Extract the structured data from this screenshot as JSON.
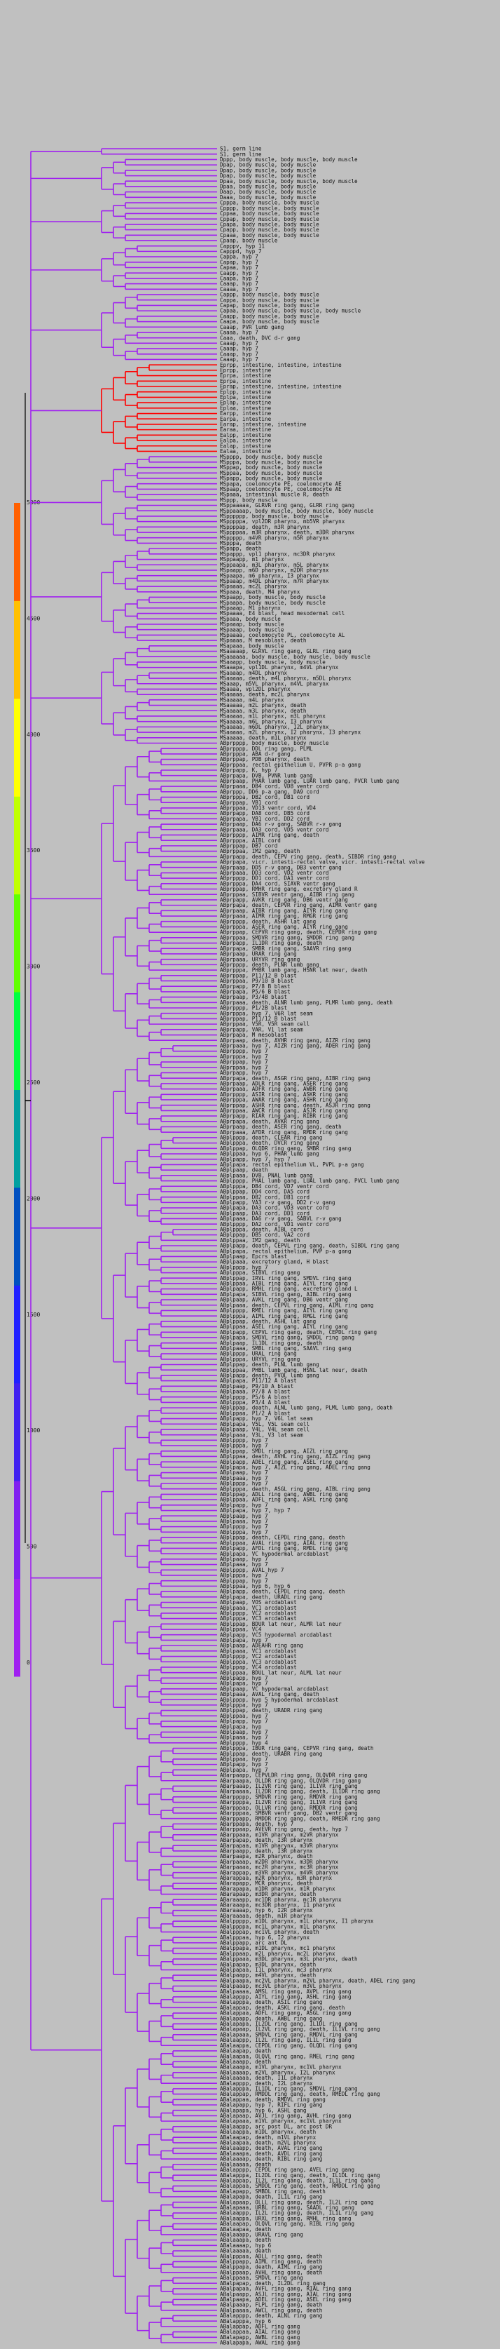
{
  "tree": {
    "leaf_labels": [
      "S1, germ line",
      "S1, germ line",
      "Dppp, body muscle, body muscle, body muscle",
      "Dpap, body muscle, body muscle",
      "Dpap, body muscle, body muscle",
      "Dpap, body muscle, body muscle",
      "Dpaa, body muscle, body muscle, body muscle",
      "Dpaa, body muscle, body muscle",
      "Daap, body muscle, body muscle",
      "Daaa, body muscle, body muscle",
      "Cpppa, body muscle, body muscle",
      "Cpppp, body muscle, body muscle",
      "Cppaa, body muscle, body muscle",
      "Cppap, body muscle, body muscle",
      "Cpapa, body muscle, body muscle",
      "Cpapp, body muscle, body muscle",
      "Cpaaa, body muscle, body muscle",
      "Cpaap, body muscle",
      "Capppv, hyp 11",
      "Capppd, hyp 7",
      "Cappa, hyp 7",
      "Capap, hyp 7",
      "Capaa, hyp 7",
      "Caapp, hyp 7",
      "Caapa, hyp 7",
      "Caaap, hyp 7",
      "Caaaa, hyp 7",
      "Cappp, body muscle, body muscle",
      "Cappa, body muscle, body muscle",
      "Capap, body muscle, body muscle",
      "Capaa, body muscle, body muscle, body muscle",
      "Caapp, body muscle, body muscle",
      "Caapa, body muscle, body muscle",
      "Caaap, PVR lumb gang",
      "Caaaa, hyp 7",
      "Caaa, death, DVC d-r gang",
      "Caaap, hyp 7",
      "Caaap, hyp 7",
      "Caaap, hyp 7",
      "Caaap, hyp 7",
      "Eprpp, intestine, intestine, intestine",
      "Eprpp, intestine",
      "Eprpa, intestine",
      "Eprpa, intestine",
      "Eprap, intestine, intestine, intestine",
      "Eplpp, intestine",
      "Eplpa, intestine",
      "Eplap, intestine",
      "Eplaa, intestine",
      "Earpp, intestine",
      "Earpa, intestine",
      "Earap, intestine, intestine",
      "Earaa, intestine",
      "Ealpp, intestine",
      "Ealpa, intestine",
      "Ealap, intestine",
      "Ealaa, intestine",
      "MSpppp, body muscle, body muscle",
      "MSpppa, body muscle, body muscle",
      "MSppap, body muscle, body muscle",
      "MSppaa, body muscle, body muscle",
      "MSpapp, body muscle, body muscle",
      "MSpapa, coelomocyte PE, coelomocyte AE",
      "MSpaap, coelomocyte PE, coelomocyte AE",
      "MSpaaa, intestinal muscle R, death",
      "MSppp, body muscle",
      "MSppaaaaa, GLRVR ring gang, GLRR ring gang",
      "MSppaaaap, body muscle, body muscle, body muscle",
      "MSpppppp, body muscle, body muscle",
      "MSpppppa, vpl2DR pharynx, mb5VR pharynx",
      "MSppppap, death, m3R pharynx",
      "MSppppaa, m3R pharynx, death, m3DR pharynx",
      "MSppppp, m4VR pharynx, m5R pharynx",
      "MSpppa, death",
      "MSpapp, death",
      "MSpappp, vpl1 pharynx, mc3DR pharynx",
      "MSppaapp, m1 pharynx",
      "MSppaapa, m3L pharynx, m5L pharynx",
      "MSpaapp, m6D pharynx, m2DR pharynx",
      "MSpaapa, m6 pharynx, I3 pharynx",
      "MSpaaap, m4DL pharynx, m7R pharynx",
      "MSpaaaa, mc2L pharynx",
      "MSpaaa, death, M4 pharynx",
      "MSpaapp, body muscle, body muscle",
      "MSpaapa, body muscle, body muscle",
      "MSpaaap, M1 pharynx",
      "MSpaaaa, E4 blast, head mesodermal cell",
      "MSpaaa, body muscle",
      "MSpaaap, body muscle",
      "MSpaaap, body muscle",
      "MSpaaaa, coelomocyte PL, coelomocyte AL",
      "MSpaaaa, M mesoblast, death",
      "MSapaaa, body muscle",
      "MSaaaaap, GLRVL ring gang, GLRL ring gang",
      "MSaaaaaa, body muscle, body muscle, body muscle",
      "MSaaapp, body muscle, body muscle",
      "MSaaapa, vpl1DL pharynx, m4VL pharynx",
      "MSaaaap, m4DL pharynx",
      "MSaaaaa, death, m4L pharynx, m5DL pharynx",
      "MSaaap, m5VL pharynx, m4VL pharynx",
      "MSaaaa, vpl2DL pharynx",
      "MSaaaaa, death, mc2L pharynx",
      "MSaaaaa, m4L pharynx",
      "MSaaaaa, m2L pharynx, death",
      "MSaaaaa, m3L pharynx, death",
      "MSaaaaa, m1L pharynx, m3L pharynx",
      "MSaaaaa, m6L pharynx, I3 pharynx",
      "MSaaaaa, m6DL pharynx, I2L pharynx",
      "MSaaaaa, m2L pharynx, I2 pharynx, I3 pharynx",
      "MSaaaaa, death, m1L pharynx",
      "ABprpppp, body muscle, body muscle",
      "ABprpppp, DDL ring gang, PLML",
      "ABprpppa, ABA d-r gang",
      "ABprppap, PDB pharynx, death",
      "ABprppaa, rectal epithelium U, PVPR p-a gang",
      "ABprpapp, K, hyp 7",
      "ABprpapa, DVB, PVNR lumb gang",
      "ABprpaap, PHAR lumb gang, LUAR lumb gang, PVCR lumb gang",
      "ABprpaaa, DB4 cord, VD8 ventr cord",
      "ABprppp, DD6 p-a gang, DA9 cord",
      "ABprpppa, DB2 cord, DB1 cord",
      "ABprppap, VB1 cord",
      "ABprppaa, VD13 ventr cord, VD4",
      "ABprpapp, DA8 cord, DB5 cord",
      "ABprpapa, VB1 cord, DD2 cord",
      "ABprpaap, DA6 r-v gang, SABVR r-v gang",
      "ABprpaaa, DA3 cord, VD5 ventr cord",
      "ABprpppp, AIMR ring gang, death",
      "ABprpppa, AIBL cord",
      "ABprppap, DB7 cord",
      "ABprppaa, IM2 gang, death",
      "ABprpapp, death, CEPV ring gang, death, SIBDR ring gang",
      "ABprpapa, vicr. intesti-rectal valve, vicr. intesti-rectal valve",
      "ABprpaap, DD5 r-v gang, DB3 ventr gang",
      "ABprpaaa, DD3 cord, VD2 ventr cord",
      "ABprpppp, DD1 cord, DA1 ventr cord",
      "ABprpppa, DA4 cord, SIAVR ventr gang",
      "ABprppap, RMHR ring gang, excretory gland R",
      "ABprppaa, SIBVR ventr gang, AIBR ring gang",
      "ABprpapp, AVKR ring gang, DB6 ventr gang",
      "ABprpapa, death, CEPVR ring gang, AIMR ventr gang",
      "ABprpaap, AIBR ring gang, AIYR ring gang",
      "ABprpaaa, AIMR ring gang, RMGR ring gang",
      "ABprpppp, death, ASHR lat gang",
      "ABprpppa, ASER ring gang, AIYR ring gang",
      "ABprppap, CEPVR ring gang, death, CEPDR ring gang",
      "ABprppaa, SMDVR ring gang, SMDDR ring gang",
      "ABprpapp, IL1DR ring gang, death",
      "ABprpapa, SMBR ring gang, SAAVR ring gang",
      "ABprpaap, URAR ring gang",
      "ABprpaaa, URYVR ring gang",
      "ABprpppp, death, PLNR lumb gang",
      "ABprpppa, PHBR lumb gang, HSNR lat neur, death",
      "ABprppap, P11/12 B blast",
      "ABprppaa, P9/10 B blast",
      "ABprpapp, P7/8 B blast",
      "ABprpapa, P5/6 B blast",
      "ABprpaap, P3/4B blast",
      "ABprpaaa, death, ALNR lumb gang, PLMR lumb gang, death",
      "ABprpppp, P1/2B blast",
      "ABprpppa, hyp 7, V6R lat seam",
      "ABprppap, P11/12 B blast",
      "ABprppaa, V5R, V5R seam cell",
      "ABprpapp, VAR, V1 lat seam",
      "ABprpapa, M mesoblast",
      "ABprpaap, death, AVHR ring gang, AIZR ring gang",
      "ABprpaaa, hyp 7, AIZR ring gang, ADER ring gang",
      "ABprpppp, hyp 7",
      "ABprpppa, hyp 7",
      "ABprppap, hyp 7",
      "ABprppaa, hyp 7",
      "ABprpapp, hyp 7",
      "ABprpapa, death, ASGR ring gang, AIBR ring gang",
      "ABprpaap, ADLR ring gang, ASER ring gang",
      "ABprpaaa, ADFR ring gang, AWBR ring gang",
      "ABprpppp, ASIR ring gang, ASKR ring gang",
      "ABprpppa, AWAR ring gang, ASHR ring gang",
      "ABprppap, ASHR ring gang, death, ASJR ring gang",
      "ABprppaa, AWCR ring gang, ASJR ring gang",
      "ABprpapp, RIAR ring gang, RIBR ring gang",
      "ABprpapa, death, AVKR ring gang",
      "ABprpaap, death, ASER ring gang, death",
      "ABprpaaa, AFDR ring gang, RMDR ring gang",
      "ABplpppp, death, CLEAR ring gang",
      "ABplpppa, death, DVCR ring gang",
      "ABplppap, OLQDR ring gang, SMBR ring gang",
      "ABplppaa, hyp 6, PHAR lumb gang",
      "ABplpapp, hyp 7, hyp 7",
      "ABplpapa, rectal epithelium VL, PVPL p-a gang",
      "ABplpaap, death",
      "ABplpaaa, DVB, PNAL lumb gang",
      "ABplpppp, PHAL lumb gang, LUAL lumb gang, PVCL lumb gang",
      "ABplpppa, DB4 cord, VD7 ventr cord",
      "ABplppap, DD4 cord, DA5 cord",
      "ABplppaa, DB2 cord, DB1 cord",
      "ABplpapp, VA3 r-v gang, DD2 r-v gang",
      "ABplpapa, DA3 cord, VD3 ventr cord",
      "ABplpaap, DA3 cord, DD1 cord",
      "ABplpaaa, DA6 r-v gang, SABVL r-v gang",
      "ABplpppp, DA2 cord, VD1 ventr cord",
      "ABplpppa, death, AIBL cord",
      "ABplppap, DB5 cord, VA2 cord",
      "ABplppaa, IM2 gang, death",
      "ABplpapp, death, CEPVL ring gang, death, SIBDL ring gang",
      "ABplpapa, rectal epithelium, PVP p-a gang",
      "ABplpaap, Epcrs blast",
      "ABplpaaa, excretory gland, H blast",
      "ABplpppp, hyp 7",
      "ABplpppa, SIBVL ring gang",
      "ABplppap, IRVL ring gang, SMDVL ring gang",
      "ABplppaa, AIBL ring gang, AIYL ring gang",
      "ABplpapp, RMHL ring gang, excretory gland L",
      "ABplpapa, SIBVL ring gang, AIBL ring gang",
      "ABplpaap, AVKL ring gang, DB6 ventr gang",
      "ABplpaaa, death, CEPVL ring gang, AIML ring gang",
      "ABplpppp, RMEL ring gang, AIYL ring gang",
      "ABplpppa, AIML ring gang, RMGL ring gang",
      "ABplppap, death, ASHL lat gang",
      "ABplppaa, ASEL ring gang, AIYL ring gang",
      "ABplpapp, CEPVL ring gang, death, CEPDL ring gang",
      "ABplpapa, SMDVL ring gang, SMDDL ring gang",
      "ABplpaap, IL1DL ring gang, death",
      "ABplpaaa, SMBL ring gang, SAAVL ring gang",
      "ABplpppp, URAL ring gang",
      "ABplpppa, URYVL ring gang",
      "ABplppap, death, PLNL lumb gang",
      "ABplppaa, PHBL lumb gang, HSNL lat neur, death",
      "ABplpapp, death, PVQL lumb gang",
      "ABplpapa, P11/12 A blast",
      "ABplpaap, P9/10 A blast",
      "ABplpaaa, P7/8 A blast",
      "ABplpppp, P5/6 A blast",
      "ABplpppa, P3/4 A blast",
      "ABplppap, death, ALNL lumb gang, PLML lumb gang, death",
      "ABplppaa, P1/2 A blast",
      "ABplpapp, hyp 7, V6L lat seam",
      "ABplpapa, V5L, V5L seam cell",
      "ABplpaap, V4L, V4L seam cell",
      "ABplpaaa, V3L, V3 lat seam",
      "ABplpppp, hyp 7",
      "ABplpppa, hyp 7",
      "ABplppap, SMDL ring gang, AIZL ring gang",
      "ABplppaa, death, AVHL ring gang, AIZL ring gang",
      "ABplpapp, ADEL ring gang, ASEL ring gang",
      "ABplpapa, hyp 7, AIZL ring gang, ADEL ring gang",
      "ABplpaap, hyp 7",
      "ABplpaaa, hyp 7",
      "ABplpppp, hyp 7",
      "ABplpppa, death, ASGL ring gang, AIBL ring gang",
      "ABplppap, ADLL ring gang, AWBL ring gang",
      "ABplppaa, ADFL ring gang, ASKL ring gang",
      "ABplpapp, hyp 7",
      "ABplpapa, hyp 7, hyp 7",
      "ABplpaap, hyp 7",
      "ABplpaaa, hyp 7",
      "ABplpppp, hyp 7",
      "ABplpppa, hyp 7",
      "ABplppap, death, CEPDL ring gang, death",
      "ABplppaa, AVAL ring gang, AIAL ring gang",
      "ABplpapp, AFDL ring gang, RMDL ring gang",
      "ABplpapa, VC hypodermal arcdablast",
      "ABplpaap, hyp 7",
      "ABplpaaa, hyp 7",
      "ABplpppp, AVAL hyp 7",
      "ABplpppa, hyp 7",
      "ABplppap, hyp 7",
      "ABplppaa, hyp 6, hyp 6",
      "ABplpapp, death, CEPDL ring gang, death",
      "ABplpapa, death, URADL ring gang",
      "ABplpaap, VOS arcdablast",
      "ABplpaaa, VC1 arcdablast",
      "ABplpppp, VC2 arcdablast",
      "ABplpppa, VC3 arcdablast",
      "ABplppap, BDUR lat neur, ALMR lat neur",
      "ABplppaa, VC4",
      "ABplpapp, VC5 hypodermal arcdablast",
      "ABplpapa, hyp 7",
      "ABplpaap, ADEAHR ring gang",
      "ABplpaaa, VC1 arcdablast",
      "ABplpppp, VC2 arcdablast",
      "ABplpppa, VC3 arcdablast",
      "ABplppap, VC4 arcdablast",
      "ABplppaa, BDUL lat neur, ALML lat neur",
      "ABplpapp, hyp 7",
      "ABplpapa, hyp 7",
      "ABplpaap, VC hypodermal arcdablast",
      "ABplpaaa, AVAL ring gang, death",
      "ABplpppp, hyp 5 hypodermal arcdablast",
      "ABplpppa, hyp 7",
      "ABplppap, death, URADR ring gang",
      "ABplppaa, hyp 7",
      "ABplpapp, hyp 7",
      "ABplpapa, hyp",
      "ABplpaap, hyp 7",
      "ABplpaaa, hyp 7",
      "ABplpppp, hyp 4",
      "ABplpppa, IBUR ring gang, CEPVR ring gang, death",
      "ABplppap, death, URABR ring gang",
      "ABplppaa, hyp 7",
      "ABplpapp, hyp 7",
      "ABplpapa, hyp 7",
      "ABarpaapp, CEPVLDR ring gang, OLQVDR ring gang",
      "ABarpaapa, OLLDR ring gang, OLQVDR ring gang",
      "ABarpaaap, IL2VR ring gang, IL1VR ring gang",
      "ABarpaaaa, IL2DR ring gang, death, IL1DR ring gang",
      "ABarppppp, SMDVR ring gang, RMDVR ring gang",
      "ABarppppa, IL2VR ring gang, IL1VR ring gang",
      "ABarpppap, OLLVR ring gang, RMDDR ring gang",
      "ABarpppaa, SMBVR ventr gang, DB2 ventr gang",
      "ABarppapp, RMDDR ring gang, death, RMEDR ring gang",
      "ABarppapa, death, hyp 7",
      "ABarppaap, AVEVR ring gang, death, hyp 7",
      "ABarppaaa, m1VR pharynx, m2VR pharynx",
      "ABarpapap, death, I3R pharynx",
      "ABarpapaa, m1VR pharynx, m3VR pharynx",
      "ABarpaapp, death, I3R pharynx",
      "ABarpaapa, m2R pharynx, death",
      "ABarpaaap, m2DR pharynx, m3DR pharynx",
      "ABarpaaaa, mc2R pharynx, mc3R pharynx",
      "ABarappap, m3VR pharynx, m4VR pharynx",
      "ABarappaa, m2R pharynx, m3R pharynx",
      "ABarapapp, MCR pharynx, death",
      "ABarapapa, m1DR pharynx, m1R pharynx",
      "ABarapaap, m3DR pharynx, death",
      "ABaraaapp, mc1DR pharynx, mc1R pharynx",
      "ABaraaapa, mc3DR pharynx, I1 pharynx",
      "ABaraaaap, hyp 6, I2R pharynx",
      "ABaraaaaa, death, m1R pharynx",
      "ABalppppp, m1DL pharynx, m1L pharynx, I1 pharynx",
      "ABalppppa, mc1L pharynx, m1L pharynx",
      "ABalpppap, mc1VL pharynx, death",
      "ABalpppaa, hyp 6, I2 pharynx",
      "ABalppapp, arc ant DL",
      "ABalppapa, m1DL pharynx, mc1 pharynx",
      "ABalppaap, m2L pharynx, mc2L pharynx",
      "ABalppaaa, m3DL pharynx, m3L pharynx, death",
      "ABalpapap, m3DL pharynx, death",
      "ABalpapaa, I1L pharynx, mc3 pharynx",
      "ABalpaapp, m4VL pharynx, death",
      "ABalpaapa, mc2VL pharynx, m2VL pharynx, death, ADEL ring gang",
      "ABalpaaap, mc3VL pharynx, m3VL pharynx",
      "ABalpaaaa, AMSL ring gang, AVPL ring gang",
      "ABalapppp, AIYL ring gang, ASHL ring gang",
      "ABalapppa, death, ASIL ring gang",
      "ABalappap, death, ASKL ring gang, death",
      "ABalappaa, ADFL ring gang, ASGL ring gang",
      "ABalapapp, death, AWBL ring gang",
      "ABalapapa, IL2DL ring gang, IL1DL ring gang",
      "ABalapaap, IL2VL ring gang, death, IL1VL ring gang",
      "ABalapaaa, SMDVL ring gang, RMDVL ring gang",
      "ABalaappp, IL2L ring gang, IL1L ring gang",
      "ABalaappa, CEPDL ring gang, OLQDL ring gang",
      "ABalaapap, death",
      "ABalaapaa, OLQVL ring gang, RMEL ring gang",
      "ABalaaapp, death",
      "ABalaaapa, m1VL pharynx, mc1VL pharynx",
      "ABalaaaap, m2VL pharynx, I2L pharynx",
      "ABalaaaaa, death, I1L pharynx",
      "ABalapppp, death, I2L pharynx",
      "ABalapppa, IL1DL ring gang, SMDVL ring gang",
      "ABalappap, RMDDL ring gang, death, RMEDL ring gang",
      "ABalappaa, death, RMDVL ring gang",
      "ABalapapp, hyp 7, RIFL ring gang",
      "ABalapapa, hyp 6, ASHL gang",
      "ABalapaap, AVJL ring gang, AVHL ring gang",
      "ABalapaaa, m1VL pharynx, mc1VL pharynx",
      "ABalaappp, arc post DL, arc post DR",
      "ABalaappa, m1DL pharynx, death",
      "ABalaapap, death, m1VL pharynx",
      "ABalaapaa, death, m2VL pharynx",
      "ABalaaapp, death, AVAL ring gang",
      "ABalaaapa, death, AVDL ring gang",
      "ABalaaaap, death, RIBL ring gang",
      "ABalaaaaa, death",
      "ABalapppp, CEPDL ring gang, AVEL ring gang",
      "ABalapppa, IL2DL ring gang, death, IL1DL ring gang",
      "ABalappap, IL2L ring gang, death, IL1L ring gang",
      "ABalappaa, SMDDL ring gang, death, RMDDL ring gang",
      "ABalapapp, SMBDL ring gang, death",
      "ABalapapa, death, IL1L ring gang",
      "ABalapaap, OLLL ring gang, death, IL2L ring gang",
      "ABalapaaa, URBL ring gang, SAADL ring gang",
      "ABalaappp, IL2L ring gang, death, IL1L ring gang",
      "ABalaappa, URXL ring gang, RMHL ring gang",
      "ABalaapap, OLQVL ring gang, RIBL ring gang",
      "ABalaapaa, death",
      "ABalaaapp, URAVL ring gang",
      "ABalaaapa, death",
      "ABalaaaap, hyp 6",
      "ABalaaaaa, death",
      "ABalpppaa, ADLL ring gang, death",
      "ABalppapp, AIML ring gang, death",
      "ABalppapa, death, AIML ring gang",
      "ABalppaap, AVHL ring gang, death",
      "ABalppaaa, SMDVL ring gang",
      "ABalpapap, death, IL2DL ring gang",
      "ABalpapaa, AVFL ring gang, RIAL ring gang",
      "ABalpaapp, ASJL ring gang, AIAL ring gang",
      "ABalpaapa, ADEL ring gang, ASEL ring gang",
      "ABalpaaap, FLPL ring gang, death",
      "ABalpaaaa, AWCL ring gang, death",
      "ABalapppp, death, ALNL ring gang",
      "ABalapppa, hyp 6",
      "ABalappap, ADFL ring gang",
      "ABalappaa, AIAL ring gang",
      "ABalapapp, AWBL ring gang",
      "ABalapapa, AWAL ring gang"
    ],
    "leaf_colors": {
      "intestine": "#ff0000",
      "default": "#a020f0"
    },
    "scale": {
      "ticks": [
        0,
        500,
        1000,
        1500,
        2000,
        2500,
        3000,
        3500,
        4000,
        4500,
        5000
      ],
      "colors": [
        "#a020f0",
        "#8020f0",
        "#4020f0",
        "#2020ff",
        "#0050c0",
        "#00a0a0",
        "#00ff40",
        "#60ff00",
        "#c0ff00",
        "#ffff00",
        "#ffc000",
        "#ff6000"
      ]
    }
  }
}
